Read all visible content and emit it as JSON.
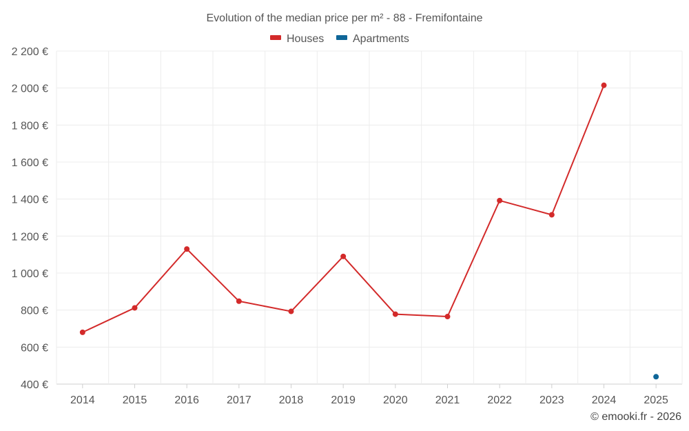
{
  "chart_data": {
    "type": "line",
    "title": "Evolution of the median price per m² - 88 - Fremifontaine",
    "x": [
      "2014",
      "2015",
      "2016",
      "2017",
      "2018",
      "2019",
      "2020",
      "2021",
      "2022",
      "2023",
      "2024",
      "2025"
    ],
    "series": [
      {
        "name": "Houses",
        "color": "#d32a2a",
        "values": [
          680,
          812,
          1130,
          848,
          793,
          1090,
          778,
          765,
          1392,
          1315,
          2015,
          null
        ]
      },
      {
        "name": "Apartments",
        "color": "#0f6698",
        "values": [
          null,
          null,
          null,
          null,
          null,
          null,
          null,
          null,
          null,
          null,
          null,
          440
        ]
      }
    ],
    "ylim": [
      400,
      2200
    ],
    "yticks": [
      400,
      600,
      800,
      1000,
      1200,
      1400,
      1600,
      1800,
      2000,
      2200
    ],
    "ytick_labels": [
      "400 €",
      "600 €",
      "800 €",
      "1 000 €",
      "1 200 €",
      "1 400 €",
      "1 600 €",
      "1 800 €",
      "2 000 €",
      "2 200 €"
    ],
    "grid": true,
    "legend_position": "top-center"
  },
  "credit": "© emooki.fr - 2026"
}
